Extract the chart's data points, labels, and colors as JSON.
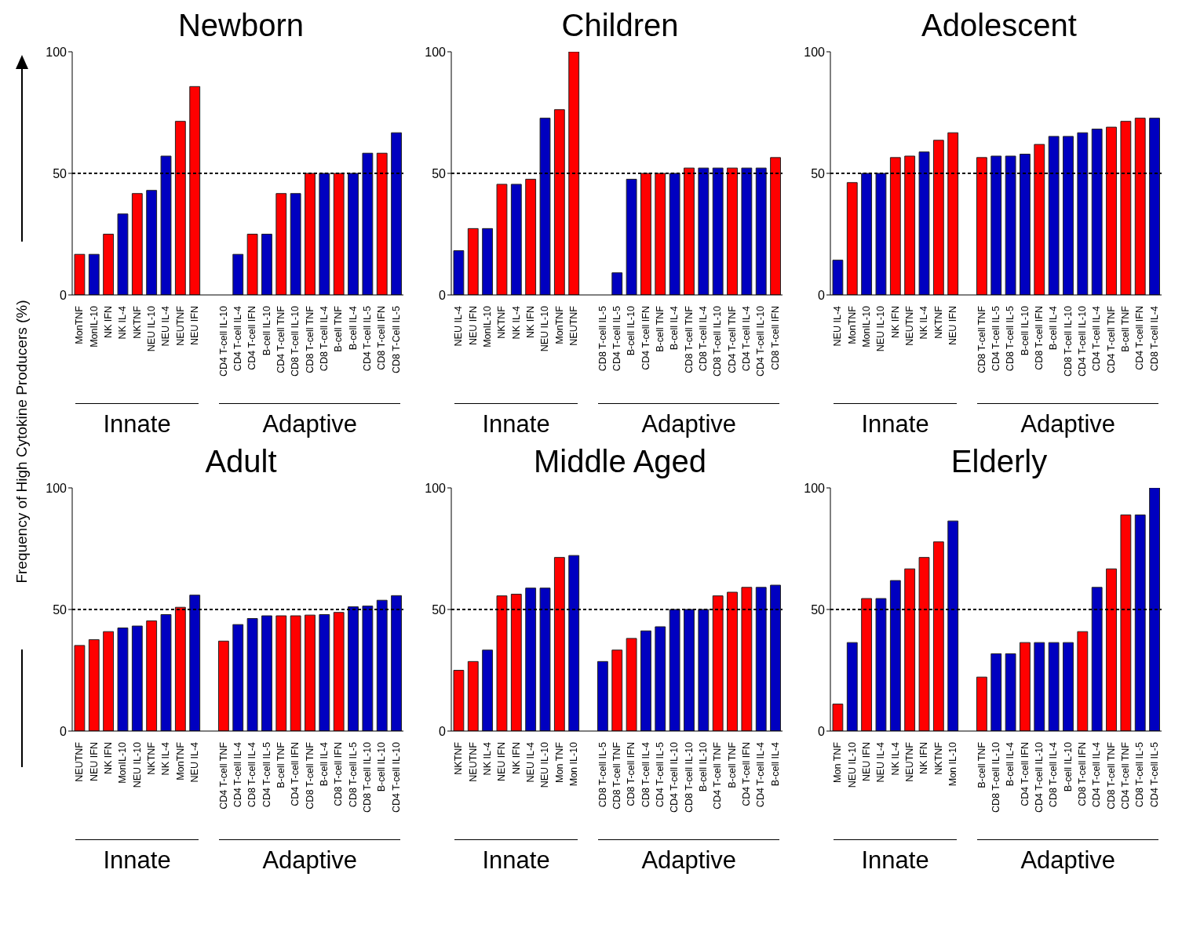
{
  "chart_data": [
    {
      "type": "bar",
      "title": "Newborn",
      "ylabel": "Frequency of High Cytokine Producers (%)",
      "categories": [
        "MonTNF",
        "MonIL-10",
        "NK IFN",
        "NK IL-4",
        "NKTNF",
        "NEU IL-10",
        "NEU IL-4",
        "NEUTNF",
        "NEU IFN",
        null,
        "CD4 T-cell IL-10",
        "CD4 T-cell IL-4",
        "CD4 T-cell IFN",
        "B-cell IL-10",
        "CD4 T-cell TNF",
        "CD8 T-cell IL-10",
        "CD8 T-cell TNF",
        "CD8 T-cell IL-4",
        "B-cell TNF",
        "B-cell IL-4",
        "CD4 T-cell IL-5",
        "CD8 T-cell IFN",
        "CD8 T-Cell IL-5"
      ],
      "values": [
        16.7,
        16.7,
        25,
        33.3,
        41.7,
        43,
        57.1,
        71.4,
        85.7,
        null,
        0,
        16.7,
        25,
        25,
        41.7,
        41.7,
        50,
        50,
        50,
        50,
        58.3,
        58.3,
        66.7
      ],
      "colors": [
        "#ff0000",
        "#0000c0",
        "#ff0000",
        "#0000c0",
        "#ff0000",
        "#0000c0",
        "#0000c0",
        "#ff0000",
        "#ff0000",
        null,
        null,
        "#0000c0",
        "#ff0000",
        "#0000c0",
        "#ff0000",
        "#0000c0",
        "#ff0000",
        "#0000c0",
        "#ff0000",
        "#0000c0",
        "#0000c0",
        "#ff0000",
        "#0000c0"
      ],
      "ylim": [
        0,
        100
      ],
      "yticks": [
        0,
        50,
        100
      ],
      "grid": false,
      "legend": false,
      "ref_lines": [
        {
          "axis": "y",
          "value": 50,
          "color": "#000000",
          "line_style": "dashed"
        }
      ],
      "annotations": [
        "Innate",
        "Adaptive"
      ]
    },
    {
      "type": "bar",
      "title": "Children",
      "categories": [
        "NEU IL-4",
        "NEU IFN",
        "MonIL-10",
        "NKTNF",
        "NK IL-4",
        "NK IFN",
        "NEU IL-10",
        "MonTNF",
        "NEUTNF",
        null,
        "CD8 T-cell IL-5",
        "CD4 T-cell IL-5",
        "B-cell IL-10",
        "CD4 T-cell IFN",
        "B-cell TNF",
        "B-cell IL-4",
        "CD8 T-cell TNF",
        "CD8 T-cell IL-4",
        "CD8 T-cell IL-10",
        "CD4 T-cell TNF",
        "CD4 T-cell IL-4",
        "CD4 T-cell IL-10",
        "CD8 T-cell IFN"
      ],
      "values": [
        18.2,
        27.3,
        27.3,
        45.5,
        45.5,
        47.6,
        72.7,
        76.2,
        100,
        null,
        0,
        9.1,
        47.6,
        50,
        50,
        50,
        52.2,
        52.2,
        52.2,
        52.2,
        52.2,
        52.2,
        56.5
      ],
      "colors": [
        "#0000c0",
        "#ff0000",
        "#0000c0",
        "#ff0000",
        "#0000c0",
        "#ff0000",
        "#0000c0",
        "#ff0000",
        "#ff0000",
        null,
        null,
        "#0000c0",
        "#0000c0",
        "#ff0000",
        "#ff0000",
        "#0000c0",
        "#ff0000",
        "#0000c0",
        "#0000c0",
        "#ff0000",
        "#0000c0",
        "#0000c0",
        "#ff0000"
      ],
      "ylim": [
        0,
        100
      ],
      "yticks": [
        0,
        50,
        100
      ],
      "grid": false,
      "legend": false,
      "ref_lines": [
        {
          "axis": "y",
          "value": 50,
          "color": "#000000",
          "line_style": "dashed"
        }
      ],
      "annotations": [
        "Innate",
        "Adaptive"
      ]
    },
    {
      "type": "bar",
      "title": "Adolescent",
      "categories": [
        "NEU IL-4",
        "MonTNF",
        "MonIL-10",
        "NEU IL-10",
        "NK IFN",
        "NEUTNF",
        "NK IL-4",
        "NKTNF",
        "NEU IFN",
        null,
        "CD8 T-cell TNF",
        "CD4 T-cell IL-5",
        "CD8 T-cell IL-5",
        "B-cell IL-10",
        "CD8 T-cell IFN",
        "B-cell IL-4",
        "CD8 T-cell IL-10",
        "CD4 T-cell IL-10",
        "CD4 T-cell IL-4",
        "CD4 T-cell TNF",
        "B-cell TNF",
        "CD4 T-cell IFN",
        "CD8 T-cell IL-4"
      ],
      "values": [
        14.3,
        46.2,
        50,
        50,
        56.5,
        57.1,
        58.8,
        63.6,
        66.7,
        null,
        56.5,
        57.1,
        57.1,
        57.9,
        61.9,
        65.2,
        65.2,
        66.7,
        68.2,
        69,
        71.4,
        72.7,
        72.7
      ],
      "colors": [
        "#0000c0",
        "#ff0000",
        "#0000c0",
        "#0000c0",
        "#ff0000",
        "#ff0000",
        "#0000c0",
        "#ff0000",
        "#ff0000",
        null,
        "#ff0000",
        "#0000c0",
        "#0000c0",
        "#0000c0",
        "#ff0000",
        "#0000c0",
        "#0000c0",
        "#0000c0",
        "#0000c0",
        "#ff0000",
        "#ff0000",
        "#ff0000",
        "#0000c0"
      ],
      "ylim": [
        0,
        100
      ],
      "yticks": [
        0,
        50,
        100
      ],
      "grid": false,
      "legend": false,
      "ref_lines": [
        {
          "axis": "y",
          "value": 50,
          "color": "#000000",
          "line_style": "dashed"
        }
      ],
      "annotations": [
        "Innate",
        "Adaptive"
      ]
    },
    {
      "type": "bar",
      "title": "Adult",
      "categories": [
        "NEUTNF",
        "NEU IFN",
        "NK IFN",
        "MonIL-10",
        "NEU IL-10",
        "NKTNF",
        "NK IL-4",
        "MonTNF",
        "NEU IL-4",
        null,
        "CD4 T-cell TNF",
        "CD4 T-cell IL-4",
        "CD8 T-cell IL-4",
        "CD4 T-cell IL-5",
        "B-cell TNF",
        "CD4 T-cell IFN",
        "CD8 T-cell TNF",
        "B-cell IL-4",
        "CD8 T-cell IFN",
        "CD8 T-cell IL-5",
        "CD8 T-cell IL-10",
        "B-cell IL-10",
        "CD4 T-cell IL-10"
      ],
      "values": [
        35.2,
        37.6,
        40.9,
        42.4,
        43.2,
        45.3,
        47.9,
        50.9,
        55.9,
        null,
        37,
        43.8,
        46.3,
        47.4,
        47.4,
        47.4,
        47.7,
        47.9,
        48.8,
        51.1,
        51.4,
        53.8,
        55.7
      ],
      "colors": [
        "#ff0000",
        "#ff0000",
        "#ff0000",
        "#0000c0",
        "#0000c0",
        "#ff0000",
        "#0000c0",
        "#ff0000",
        "#0000c0",
        null,
        "#ff0000",
        "#0000c0",
        "#0000c0",
        "#0000c0",
        "#ff0000",
        "#ff0000",
        "#ff0000",
        "#0000c0",
        "#ff0000",
        "#0000c0",
        "#0000c0",
        "#0000c0",
        "#0000c0"
      ],
      "ylim": [
        0,
        100
      ],
      "yticks": [
        0,
        50,
        100
      ],
      "grid": false,
      "legend": false,
      "ref_lines": [
        {
          "axis": "y",
          "value": 50,
          "color": "#000000",
          "line_style": "dashed"
        }
      ],
      "annotations": [
        "Innate",
        "Adaptive"
      ]
    },
    {
      "type": "bar",
      "title": "Middle Aged",
      "categories": [
        "NKTNF",
        "NEUTNF",
        "NK IL-4",
        "NEU IFN",
        "NK IFN",
        "NEU IL-4",
        "NEU IL-10",
        "Mon TNF",
        "Mon IL-10",
        null,
        "CD8 T-cell IL-5",
        "CD8 T-cell TNF",
        "CD8 T-cell IFN",
        "CD8 T-cell IL-4",
        "CD4 T-cell IL-5",
        "CD4 T-cell IL-10",
        "CD8 T-cell IL-10",
        "B-cell IL-10",
        "CD4 T-cell TNF",
        "B-cell TNF",
        "CD4 T-cell IFN",
        "CD4 T-cell IL-4",
        "B-cell IL-4"
      ],
      "values": [
        25,
        28.6,
        33.3,
        55.6,
        56.3,
        58.8,
        58.8,
        71.4,
        72.2,
        null,
        28.6,
        33.3,
        38.1,
        41.2,
        42.9,
        50,
        50,
        50,
        55.6,
        57.1,
        59.1,
        59.1,
        60
      ],
      "colors": [
        "#ff0000",
        "#ff0000",
        "#0000c0",
        "#ff0000",
        "#ff0000",
        "#0000c0",
        "#0000c0",
        "#ff0000",
        "#0000c0",
        null,
        "#0000c0",
        "#ff0000",
        "#ff0000",
        "#0000c0",
        "#0000c0",
        "#0000c0",
        "#0000c0",
        "#0000c0",
        "#ff0000",
        "#ff0000",
        "#ff0000",
        "#0000c0",
        "#0000c0"
      ],
      "ylim": [
        0,
        100
      ],
      "yticks": [
        0,
        50,
        100
      ],
      "grid": false,
      "legend": false,
      "ref_lines": [
        {
          "axis": "y",
          "value": 50,
          "color": "#000000",
          "line_style": "dashed"
        }
      ],
      "annotations": [
        "Innate",
        "Adaptive"
      ]
    },
    {
      "type": "bar",
      "title": "Elderly",
      "categories": [
        "Mon TNF",
        "NEU IL-10",
        "NEU IFN",
        "NEU IL-4",
        "NK IL-4",
        "NEUTNF",
        "NK IFN",
        "NKTNF",
        "Mon IL-10",
        null,
        "B-cell TNF",
        "CD8 T-cell IL-10",
        "B-cell IL-4",
        "CD4 T-cell IFN",
        "CD4 T-cell IL-10",
        "CD8 T-cell IL-4",
        "B-cell IL-10",
        "CD8 T-cell IFN",
        "CD4 T-cell IL-4",
        "CD8 T-cell TNF",
        "CD4 T-cell TNF",
        "CD8 T-cell IL-5",
        "CD4 T-cell IL-5"
      ],
      "values": [
        11.1,
        36.4,
        54.5,
        54.5,
        61.9,
        66.7,
        71.4,
        77.8,
        86.4,
        null,
        22.2,
        31.8,
        31.8,
        36.4,
        36.4,
        36.4,
        36.4,
        40.9,
        59.1,
        66.7,
        88.9,
        88.9,
        100
      ],
      "colors": [
        "#ff0000",
        "#0000c0",
        "#ff0000",
        "#0000c0",
        "#0000c0",
        "#ff0000",
        "#ff0000",
        "#ff0000",
        "#0000c0",
        null,
        "#ff0000",
        "#0000c0",
        "#0000c0",
        "#ff0000",
        "#0000c0",
        "#0000c0",
        "#0000c0",
        "#ff0000",
        "#0000c0",
        "#ff0000",
        "#ff0000",
        "#0000c0",
        "#0000c0"
      ],
      "ylim": [
        0,
        100
      ],
      "yticks": [
        0,
        50,
        100
      ],
      "grid": false,
      "legend": false,
      "ref_lines": [
        {
          "axis": "y",
          "value": 50,
          "color": "#000000",
          "line_style": "dashed"
        }
      ],
      "annotations": [
        "Innate",
        "Adaptive"
      ]
    }
  ]
}
